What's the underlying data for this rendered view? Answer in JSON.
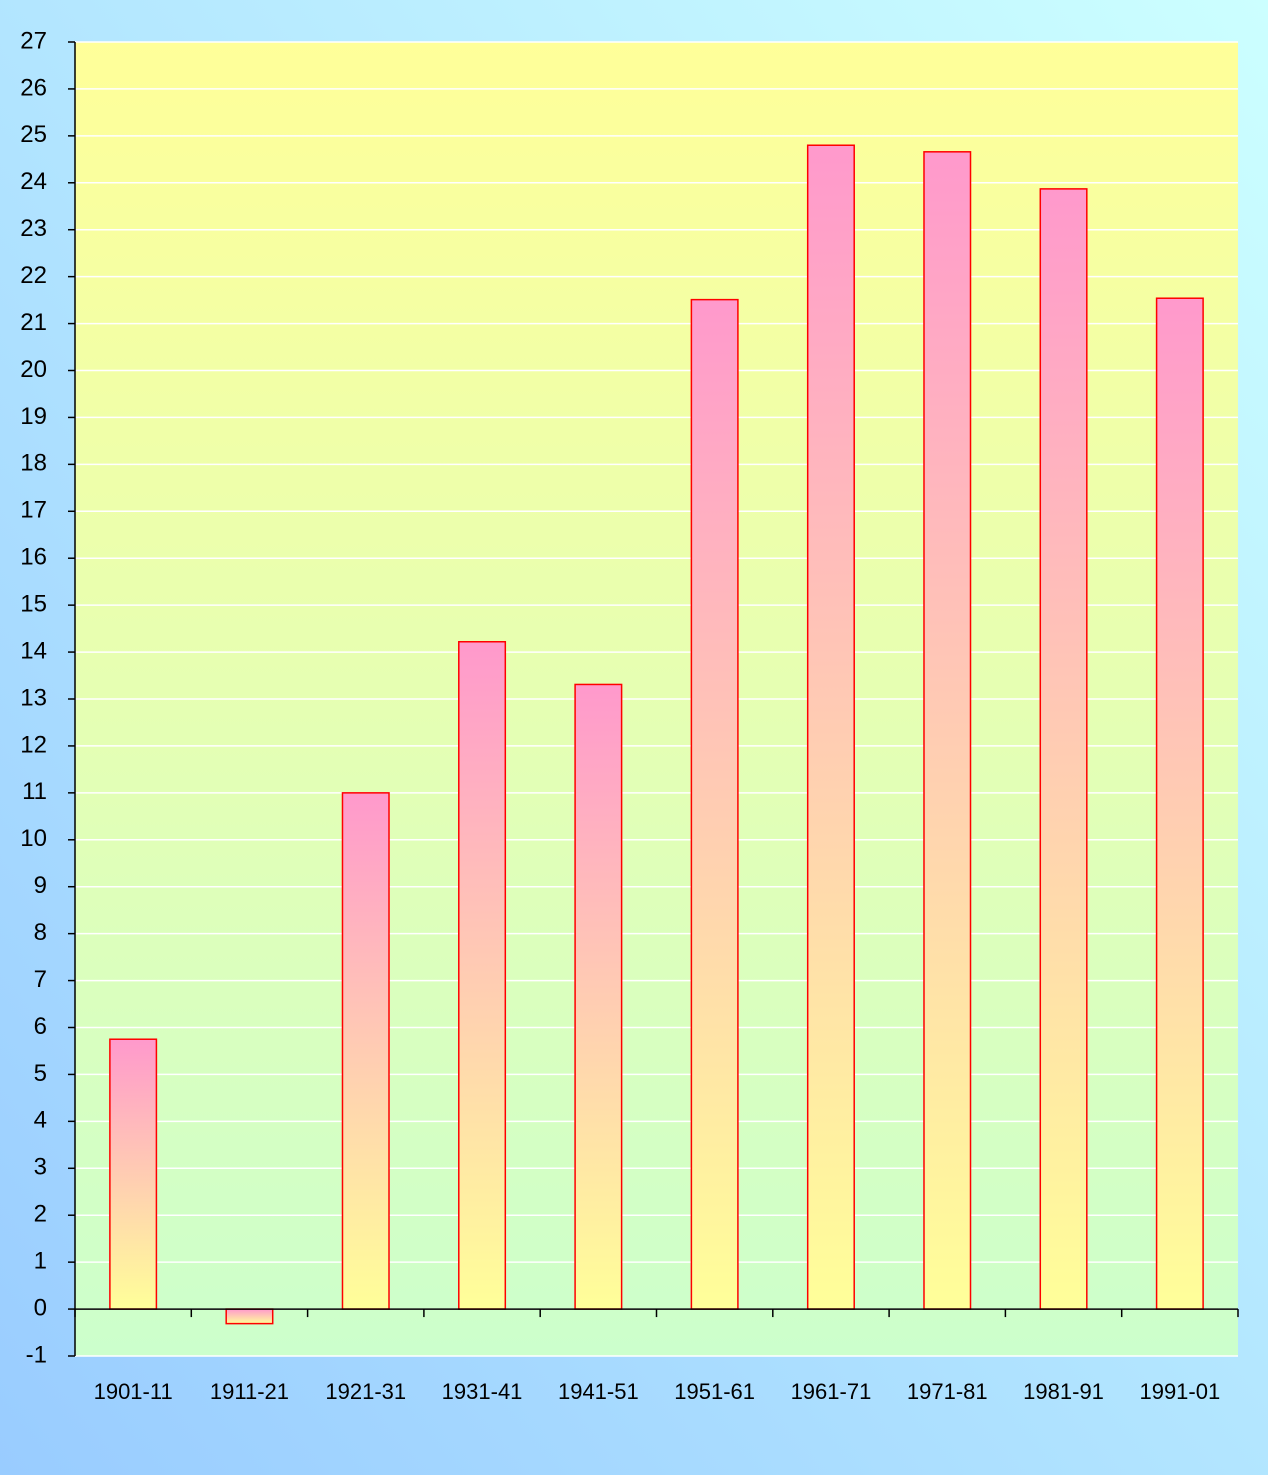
{
  "chart_data": {
    "type": "bar",
    "categories": [
      "1901-11",
      "1911-21",
      "1921-31",
      "1931-41",
      "1941-51",
      "1951-61",
      "1961-71",
      "1971-81",
      "1981-91",
      "1991-01"
    ],
    "values": [
      5.75,
      -0.31,
      11.0,
      14.22,
      13.31,
      21.51,
      24.8,
      24.66,
      23.87,
      21.54
    ],
    "color": "#ff99cc",
    "edge_color": "#ff0000",
    "ylim": [
      -1,
      27
    ],
    "yticks": [
      -1,
      0,
      1,
      2,
      3,
      4,
      5,
      6,
      7,
      8,
      9,
      10,
      11,
      12,
      13,
      14,
      15,
      16,
      17,
      18,
      19,
      20,
      21,
      22,
      23,
      24,
      25,
      26,
      27
    ],
    "grid": true
  }
}
